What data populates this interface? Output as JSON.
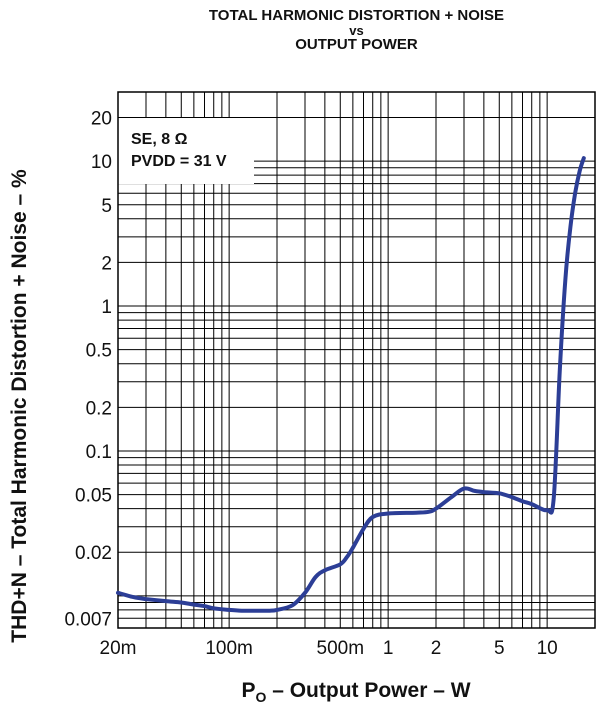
{
  "chart_data": {
    "type": "line",
    "title_lines": [
      "TOTAL HARMONIC DISTORTION + NOISE",
      "vs",
      "OUTPUT POWER"
    ],
    "ylabel": "THD+N – Total Harmonic Distortion + Noise – %",
    "xlabel": {
      "main": "P",
      "sub": "O",
      "rest": " – Output Power – W"
    },
    "annotation": [
      "SE, 8 Ω",
      "PVDD = 31 V"
    ],
    "x_scale": "log",
    "y_scale": "log",
    "xlim": [
      0.02,
      20
    ],
    "ylim": [
      0.006,
      30
    ],
    "x_ticks": [
      {
        "value": 0.02,
        "label": "20m"
      },
      {
        "value": 0.1,
        "label": "100m"
      },
      {
        "value": 0.5,
        "label": "500m"
      },
      {
        "value": 1,
        "label": "1"
      },
      {
        "value": 2,
        "label": "2"
      },
      {
        "value": 5,
        "label": "5"
      },
      {
        "value": 10,
        "label": "10"
      }
    ],
    "y_ticks": [
      {
        "value": 20,
        "label": "20"
      },
      {
        "value": 10,
        "label": "10"
      },
      {
        "value": 5,
        "label": "5"
      },
      {
        "value": 2,
        "label": "2"
      },
      {
        "value": 1,
        "label": "1"
      },
      {
        "value": 0.5,
        "label": "0.5"
      },
      {
        "value": 0.2,
        "label": "0.2"
      },
      {
        "value": 0.1,
        "label": "0.1"
      },
      {
        "value": 0.05,
        "label": "0.05"
      },
      {
        "value": 0.02,
        "label": "0.02"
      },
      {
        "value": 0.007,
        "label": "0.007"
      }
    ],
    "grid": true,
    "line_color": "#2c3e96",
    "series": [
      {
        "x": [
          0.02,
          0.025,
          0.03,
          0.04,
          0.05,
          0.06,
          0.07,
          0.08,
          0.1,
          0.12,
          0.14,
          0.16,
          0.18,
          0.2,
          0.25,
          0.3,
          0.35,
          0.4,
          0.5,
          0.55,
          0.6,
          0.7,
          0.8,
          1.0,
          1.5,
          1.8,
          2.0,
          2.5,
          3.0,
          3.5,
          4.0,
          5.0,
          6.0,
          7.0,
          8.0,
          10.0,
          11.0,
          12.0,
          13.0,
          14.0,
          15.0,
          16.0,
          17.0
        ],
        "y": [
          0.0105,
          0.0098,
          0.0095,
          0.0092,
          0.009,
          0.0087,
          0.0085,
          0.0082,
          0.008,
          0.0079,
          0.0079,
          0.0079,
          0.0079,
          0.008,
          0.0086,
          0.0105,
          0.0135,
          0.015,
          0.0165,
          0.0185,
          0.0215,
          0.029,
          0.035,
          0.037,
          0.0375,
          0.038,
          0.04,
          0.048,
          0.055,
          0.053,
          0.052,
          0.051,
          0.048,
          0.045,
          0.043,
          0.039,
          0.047,
          0.35,
          1.5,
          3.5,
          6.0,
          8.5,
          10.5
        ]
      }
    ]
  }
}
